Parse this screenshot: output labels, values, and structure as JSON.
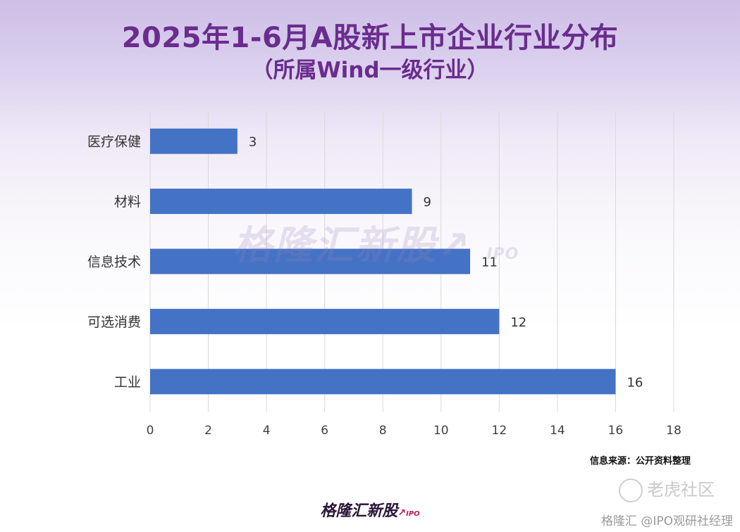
{
  "title": "2025年1-6月A股新上市企业行业分布",
  "subtitle": "（所属Wind一级行业）",
  "source_note": "信息来源：公开资料整理",
  "watermark": {
    "brand": "格隆汇新股",
    "ipo": "IPO"
  },
  "footer_logo": {
    "brand": "格隆汇新股",
    "ipo": "IPO"
  },
  "tiger_mark": "老虎社区",
  "credit": "格隆汇 @IPO观研社经理",
  "colors": {
    "title": "#6a2c8e",
    "bar": "#4472c4",
    "grid": "#d9d9d9"
  },
  "chart_data": {
    "type": "bar",
    "orientation": "horizontal",
    "categories": [
      "医疗保健",
      "材料",
      "信息技术",
      "可选消费",
      "工业"
    ],
    "values": [
      3,
      9,
      11,
      12,
      16
    ],
    "xlim": [
      0,
      18
    ],
    "xticks": [
      0,
      2,
      4,
      6,
      8,
      10,
      12,
      14,
      16,
      18
    ],
    "grid": true,
    "data_labels": true
  }
}
